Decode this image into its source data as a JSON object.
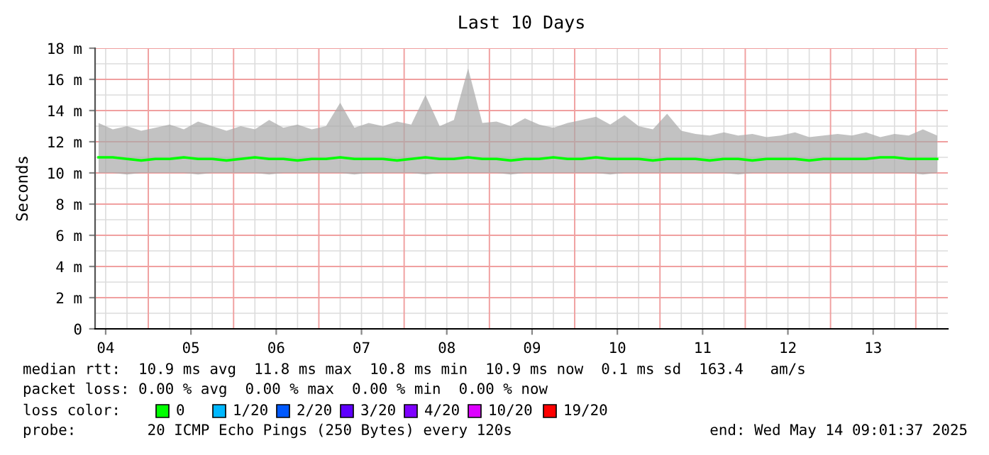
{
  "chart_data": {
    "type": "line",
    "title": "Last 10 Days",
    "ylabel": "Seconds",
    "x": [
      "2025-05-04T10:00",
      "2025-05-04T14:00",
      "2025-05-04T18:00",
      "2025-05-04T22:00",
      "2025-05-05T02:00",
      "2025-05-05T06:00",
      "2025-05-05T10:00",
      "2025-05-05T14:00",
      "2025-05-05T18:00",
      "2025-05-05T22:00",
      "2025-05-06T02:00",
      "2025-05-06T06:00",
      "2025-05-06T10:00",
      "2025-05-06T14:00",
      "2025-05-06T18:00",
      "2025-05-06T22:00",
      "2025-05-07T02:00",
      "2025-05-07T06:00",
      "2025-05-07T10:00",
      "2025-05-07T14:00",
      "2025-05-07T18:00",
      "2025-05-07T22:00",
      "2025-05-08T02:00",
      "2025-05-08T06:00",
      "2025-05-08T10:00",
      "2025-05-08T14:00",
      "2025-05-08T18:00",
      "2025-05-08T22:00",
      "2025-05-09T02:00",
      "2025-05-09T06:00",
      "2025-05-09T10:00",
      "2025-05-09T14:00",
      "2025-05-09T18:00",
      "2025-05-09T22:00",
      "2025-05-10T02:00",
      "2025-05-10T06:00",
      "2025-05-10T10:00",
      "2025-05-10T14:00",
      "2025-05-10T18:00",
      "2025-05-10T22:00",
      "2025-05-11T02:00",
      "2025-05-11T06:00",
      "2025-05-11T10:00",
      "2025-05-11T14:00",
      "2025-05-11T18:00",
      "2025-05-11T22:00",
      "2025-05-12T02:00",
      "2025-05-12T06:00",
      "2025-05-12T10:00",
      "2025-05-12T14:00",
      "2025-05-12T18:00",
      "2025-05-12T22:00",
      "2025-05-13T02:00",
      "2025-05-13T06:00",
      "2025-05-13T10:00",
      "2025-05-13T14:00",
      "2025-05-13T18:00",
      "2025-05-13T22:00",
      "2025-05-14T02:00",
      "2025-05-14T06:00"
    ],
    "series": [
      {
        "color": "#00ff00",
        "values": [
          11.0,
          11.0,
          10.9,
          10.8,
          10.9,
          10.9,
          11.0,
          10.9,
          10.9,
          10.8,
          10.9,
          11.0,
          10.9,
          10.9,
          10.8,
          10.9,
          10.9,
          11.0,
          10.9,
          10.9,
          10.9,
          10.8,
          10.9,
          11.0,
          10.9,
          10.9,
          11.0,
          10.9,
          10.9,
          10.8,
          10.9,
          10.9,
          11.0,
          10.9,
          10.9,
          11.0,
          10.9,
          10.9,
          10.9,
          10.8,
          10.9,
          10.9,
          10.9,
          10.8,
          10.9,
          10.9,
          10.8,
          10.9,
          10.9,
          10.9,
          10.8,
          10.9,
          10.9,
          10.9,
          10.9,
          11.0,
          11.0,
          10.9,
          10.9,
          10.9
        ],
        "lower": [
          10.0,
          10.0,
          9.9,
          10.0,
          10.0,
          10.0,
          10.0,
          9.9,
          10.0,
          10.0,
          10.0,
          10.0,
          9.9,
          10.0,
          10.0,
          10.0,
          10.0,
          10.0,
          9.9,
          10.0,
          10.0,
          10.0,
          10.0,
          9.9,
          10.0,
          10.0,
          10.0,
          10.0,
          10.0,
          9.9,
          10.0,
          10.0,
          10.0,
          10.0,
          10.0,
          10.0,
          9.9,
          10.0,
          10.0,
          10.0,
          10.0,
          10.0,
          10.0,
          10.0,
          10.0,
          9.9,
          10.0,
          10.0,
          10.0,
          10.0,
          10.0,
          10.0,
          10.0,
          10.0,
          10.0,
          10.0,
          10.0,
          10.0,
          9.9,
          10.0
        ],
        "upper": [
          13.2,
          12.8,
          13.0,
          12.7,
          12.9,
          13.1,
          12.8,
          13.3,
          13.0,
          12.7,
          13.0,
          12.8,
          13.4,
          12.9,
          13.1,
          12.8,
          13.0,
          14.5,
          12.9,
          13.2,
          13.0,
          13.3,
          13.1,
          15.0,
          13.0,
          13.4,
          16.7,
          13.2,
          13.3,
          13.0,
          13.5,
          13.1,
          12.9,
          13.2,
          13.4,
          13.6,
          13.1,
          13.7,
          13.0,
          12.8,
          13.8,
          12.7,
          12.5,
          12.4,
          12.6,
          12.4,
          12.5,
          12.3,
          12.4,
          12.6,
          12.3,
          12.4,
          12.5,
          12.4,
          12.6,
          12.3,
          12.5,
          12.4,
          12.8,
          12.4
        ]
      }
    ],
    "xlim": [
      "2025-05-04T09:01",
      "2025-05-14T09:01"
    ],
    "xticks": [
      {
        "value": "2025-05-04T12:00",
        "label": "04"
      },
      {
        "value": "2025-05-05T12:00",
        "label": "05"
      },
      {
        "value": "2025-05-06T12:00",
        "label": "06"
      },
      {
        "value": "2025-05-07T12:00",
        "label": "07"
      },
      {
        "value": "2025-05-08T12:00",
        "label": "08"
      },
      {
        "value": "2025-05-09T12:00",
        "label": "09"
      },
      {
        "value": "2025-05-10T12:00",
        "label": "10"
      },
      {
        "value": "2025-05-11T12:00",
        "label": "11"
      },
      {
        "value": "2025-05-12T12:00",
        "label": "12"
      },
      {
        "value": "2025-05-13T12:00",
        "label": "13"
      }
    ],
    "ylim": [
      0,
      18
    ],
    "yticks": [
      0,
      {
        "value": 2,
        "label": "2 m"
      },
      {
        "value": 4,
        "label": "4 m"
      },
      {
        "value": 6,
        "label": "6 m"
      },
      {
        "value": 8,
        "label": "8 m"
      },
      {
        "value": 10,
        "label": "10 m"
      },
      {
        "value": 12,
        "label": "12 m"
      },
      {
        "value": 14,
        "label": "14 m"
      },
      {
        "value": 16,
        "label": "16 m"
      },
      {
        "value": 18,
        "label": "18 m"
      }
    ],
    "grid": true,
    "annotations": [
      "median rtt:  10.9 ms avg  11.8 ms max  10.8 ms min  10.9 ms now  0.1 ms sd  163.4   am/s",
      "packet loss: 0.00 % avg  0.00 % max  0.00 % min  0.00 % now",
      "loss color:",
      "0",
      "1/20",
      "2/20",
      "3/20",
      "4/20",
      "10/20",
      "19/20",
      "probe:        20 ICMP Echo Pings (250 Bytes) every 120s",
      "end: Wed May 14 09:01:37 2025"
    ]
  }
}
